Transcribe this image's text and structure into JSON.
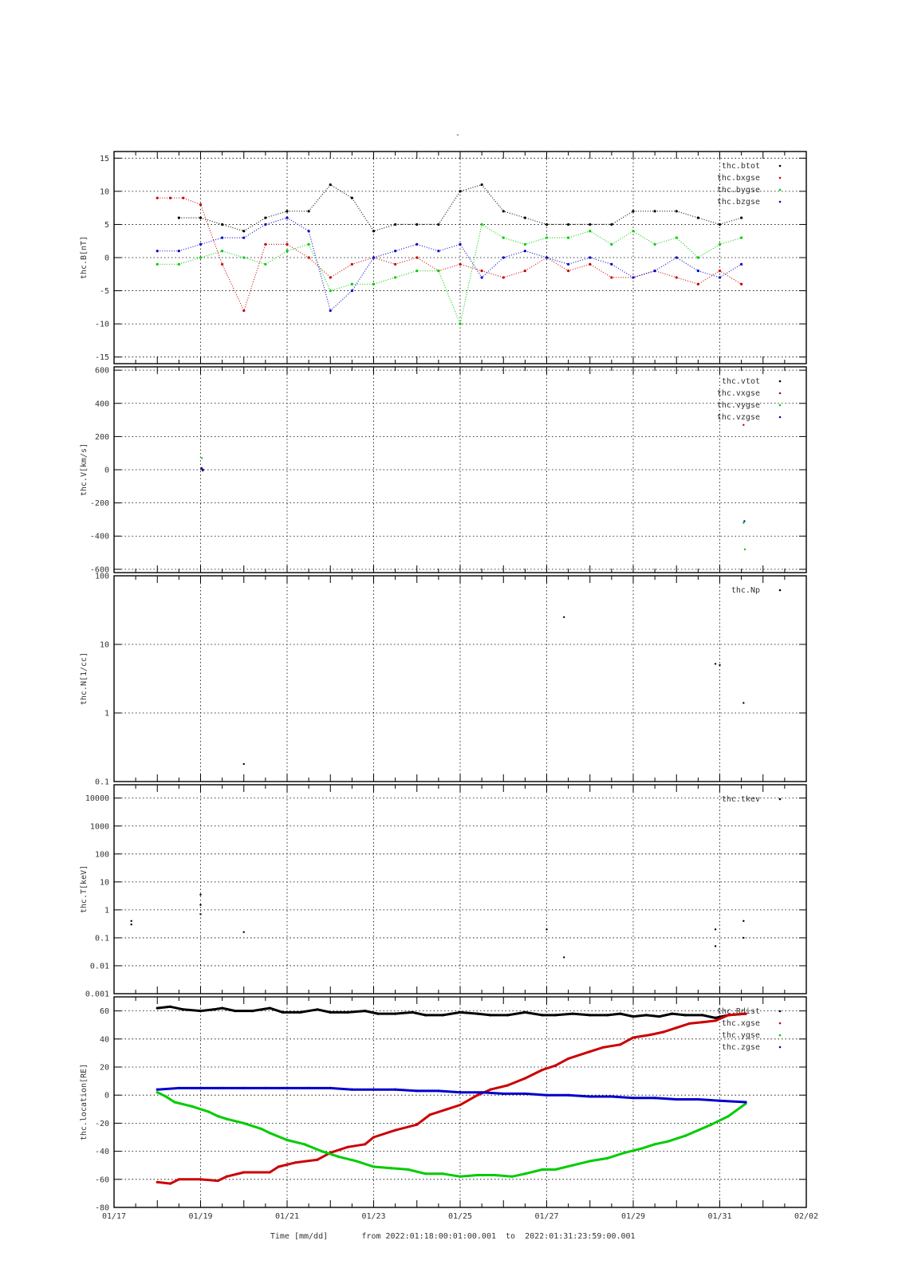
{
  "title": "-",
  "footer": {
    "xlabel": "Time [mm/dd]",
    "range_text": "from 2022:01:18:00:01:00.001  to  2022:01:31:23:59:00.001"
  },
  "colors": {
    "black": "#000000",
    "red": "#cc0000",
    "green": "#00cc00",
    "blue": "#0000cc"
  },
  "chart_data": [
    {
      "type": "scatter",
      "ylabel": "thc.B[nT]",
      "ylim": [
        -16,
        16
      ],
      "yticks": [
        -15,
        -10,
        -5,
        0,
        5,
        10,
        15
      ],
      "legend_position": "top-right",
      "series": [
        {
          "name": "thc.btot",
          "color": "#000000",
          "x": [
            18.5,
            19.0,
            19.5,
            20.0,
            20.5,
            21.0,
            21.5,
            22.0,
            22.5,
            23.0,
            23.5,
            24.0,
            24.5,
            25.0,
            25.5,
            26.0,
            26.5,
            27.0,
            27.5,
            28.0,
            28.5,
            29.0,
            29.5,
            30.0,
            30.5,
            31.0,
            31.5
          ],
          "values": [
            6,
            6,
            5,
            4,
            6,
            7,
            7,
            11,
            9,
            4,
            5,
            5,
            5,
            10,
            11,
            7,
            6,
            5,
            5,
            5,
            5,
            7,
            7,
            7,
            6,
            5,
            6
          ]
        },
        {
          "name": "thc.bxgse",
          "color": "#cc0000",
          "x": [
            18.0,
            18.3,
            18.6,
            19.0,
            19.5,
            20.0,
            20.5,
            21.0,
            21.5,
            22.0,
            22.5,
            23.0,
            23.5,
            24.0,
            24.5,
            25.0,
            25.5,
            26.0,
            26.5,
            27.0,
            27.5,
            28.0,
            28.5,
            29.0,
            29.5,
            30.0,
            30.5,
            31.0,
            31.5
          ],
          "values": [
            9,
            9,
            9,
            8,
            -1,
            -8,
            2,
            2,
            0,
            -3,
            -1,
            0,
            -1,
            0,
            -2,
            -1,
            -2,
            -3,
            -2,
            0,
            -2,
            -1,
            -3,
            -3,
            -2,
            -3,
            -4,
            -2,
            -4
          ]
        },
        {
          "name": "thc.bygse",
          "color": "#00cc00",
          "x": [
            18.0,
            18.5,
            19.0,
            19.5,
            20.0,
            20.5,
            21.0,
            21.5,
            22.0,
            22.5,
            23.0,
            23.5,
            24.0,
            24.5,
            25.0,
            25.5,
            26.0,
            26.5,
            27.0,
            27.5,
            28.0,
            28.5,
            29.0,
            29.5,
            30.0,
            30.5,
            31.0,
            31.5
          ],
          "values": [
            -1,
            -1,
            0,
            1,
            0,
            -1,
            1,
            2,
            -5,
            -4,
            -4,
            -3,
            -2,
            -2,
            -10,
            5,
            3,
            2,
            3,
            3,
            4,
            2,
            4,
            2,
            3,
            0,
            2,
            3
          ]
        },
        {
          "name": "thc.bzgse",
          "color": "#0000cc",
          "x": [
            18.0,
            18.5,
            19.0,
            19.5,
            20.0,
            20.5,
            21.0,
            21.5,
            22.0,
            22.5,
            23.0,
            23.5,
            24.0,
            24.5,
            25.0,
            25.5,
            26.0,
            26.5,
            27.0,
            27.5,
            28.0,
            28.5,
            29.0,
            29.5,
            30.0,
            30.5,
            31.0,
            31.5
          ],
          "values": [
            1,
            1,
            2,
            3,
            3,
            5,
            6,
            4,
            -8,
            -5,
            0,
            1,
            2,
            1,
            2,
            -3,
            0,
            1,
            0,
            -1,
            0,
            -1,
            -3,
            -2,
            0,
            -2,
            -3,
            -1
          ]
        }
      ]
    },
    {
      "type": "scatter",
      "ylabel": "thc.V[km/s]",
      "ylim": [
        -620,
        620
      ],
      "yticks": [
        -600,
        -400,
        -200,
        0,
        200,
        400,
        600
      ],
      "legend_position": "top-right",
      "series": [
        {
          "name": "thc.vtot",
          "color": "#000000",
          "x": [
            19.02,
            19.05
          ],
          "values": [
            5,
            -5
          ]
        },
        {
          "name": "thc.vxgse",
          "color": "#cc0000",
          "x": [
            31.55
          ],
          "values": [
            270
          ]
        },
        {
          "name": "thc.vygse",
          "color": "#00cc00",
          "x": [
            19.03,
            31.55,
            31.58
          ],
          "values": [
            70,
            -320,
            -480
          ]
        },
        {
          "name": "thc.vzgse",
          "color": "#0000cc",
          "x": [
            19.03,
            19.06,
            31.57
          ],
          "values": [
            10,
            0,
            -310
          ]
        }
      ]
    },
    {
      "type": "scatter",
      "ylabel": "thc.N[1/cc]",
      "yscale": "log",
      "ylim": [
        0.1,
        100
      ],
      "yticks": [
        0.1,
        1,
        10,
        100
      ],
      "legend_position": "top-right",
      "series": [
        {
          "name": "thc.Np",
          "color": "#000000",
          "x": [
            20.0,
            27.4,
            30.9,
            31.0,
            31.55
          ],
          "values": [
            0.18,
            25,
            5.2,
            5,
            1.4
          ]
        }
      ]
    },
    {
      "type": "scatter",
      "ylabel": "thc.T[keV]",
      "yscale": "log",
      "ylim": [
        0.001,
        30000
      ],
      "yticks": [
        0.001,
        0.01,
        0.1,
        1,
        10,
        100,
        1000,
        10000
      ],
      "ytick_labels": [
        "0.001",
        "0.01",
        "0.1",
        "1",
        "10",
        "100",
        "1000",
        "10000"
      ],
      "legend_position": "top-right",
      "series": [
        {
          "name": "thc.tkev",
          "color": "#000000",
          "x": [
            17.4,
            17.4,
            19.0,
            19.0,
            19.0,
            20.0,
            27.0,
            27.4,
            30.9,
            30.9,
            31.55,
            31.55
          ],
          "values": [
            0.4,
            0.3,
            3.5,
            1.5,
            0.7,
            0.16,
            0.2,
            0.02,
            0.2,
            0.05,
            0.4,
            0.1
          ]
        }
      ]
    },
    {
      "type": "line",
      "ylabel": "thc.location[RE]",
      "ylim": [
        -80,
        70
      ],
      "yticks": [
        -80,
        -60,
        -40,
        -20,
        0,
        20,
        40,
        60
      ],
      "xlim": [
        17,
        33
      ],
      "xticks": [
        17,
        19,
        21,
        23,
        25,
        27,
        29,
        31,
        33
      ],
      "xtick_labels": [
        "01/17",
        "01/19",
        "01/21",
        "01/23",
        "01/25",
        "01/27",
        "01/29",
        "01/31",
        "02/02"
      ],
      "legend_position": "top-right",
      "series": [
        {
          "name": "thc.Rdist",
          "color": "#000000",
          "x": [
            18.0,
            18.3,
            18.6,
            19.0,
            19.3,
            19.5,
            19.8,
            20.2,
            20.6,
            20.9,
            21.3,
            21.7,
            22.0,
            22.4,
            22.8,
            23.1,
            23.5,
            23.9,
            24.2,
            24.6,
            25.0,
            25.4,
            25.7,
            26.1,
            26.5,
            26.9,
            27.2,
            27.6,
            28.0,
            28.4,
            28.7,
            29.0,
            29.3,
            29.6,
            29.9,
            30.2,
            30.6,
            30.9,
            31.2,
            31.6
          ],
          "values": [
            62,
            63,
            61,
            60,
            61,
            62,
            60,
            60,
            62,
            59,
            59,
            61,
            59,
            59,
            60,
            58,
            58,
            59,
            57,
            57,
            59,
            58,
            57,
            57,
            59,
            57,
            57,
            58,
            57,
            57,
            58,
            56,
            57,
            56,
            58,
            57,
            57,
            55,
            57,
            58
          ]
        },
        {
          "name": "thc.xgse",
          "color": "#cc0000",
          "x": [
            18.0,
            18.3,
            18.5,
            19.0,
            19.4,
            19.6,
            20.0,
            20.6,
            20.8,
            21.2,
            21.7,
            22.0,
            22.4,
            22.8,
            23.0,
            23.5,
            24.0,
            24.3,
            24.7,
            25.0,
            25.4,
            25.7,
            26.1,
            26.5,
            26.9,
            27.2,
            27.5,
            28.0,
            28.3,
            28.7,
            29.0,
            29.4,
            29.7,
            30.0,
            30.3,
            30.6,
            30.9,
            31.2,
            31.6
          ],
          "values": [
            -62,
            -63,
            -60,
            -60,
            -61,
            -58,
            -55,
            -55,
            -51,
            -48,
            -46,
            -41,
            -37,
            -35,
            -30,
            -25,
            -21,
            -14,
            -10,
            -7,
            0,
            4,
            7,
            12,
            18,
            21,
            26,
            31,
            34,
            36,
            41,
            43,
            45,
            48,
            51,
            52,
            53,
            57,
            58
          ]
        },
        {
          "name": "thc.ygse",
          "color": "#00cc00",
          "x": [
            18.0,
            18.2,
            18.4,
            18.8,
            19.2,
            19.4,
            19.6,
            20.0,
            20.4,
            20.6,
            21.0,
            21.4,
            21.8,
            22.2,
            22.6,
            23.0,
            23.4,
            23.8,
            24.2,
            24.6,
            25.0,
            25.4,
            25.8,
            26.2,
            26.5,
            26.9,
            27.2,
            27.6,
            28.0,
            28.4,
            28.8,
            29.2,
            29.5,
            29.8,
            30.2,
            30.5,
            30.8,
            31.2,
            31.6
          ],
          "values": [
            2,
            -1,
            -5,
            -8,
            -12,
            -15,
            -17,
            -20,
            -24,
            -27,
            -32,
            -35,
            -40,
            -44,
            -47,
            -51,
            -52,
            -53,
            -56,
            -56,
            -58,
            -57,
            -57,
            -58,
            -56,
            -53,
            -53,
            -50,
            -47,
            -45,
            -41,
            -38,
            -35,
            -33,
            -29,
            -25,
            -21,
            -15,
            -6
          ]
        },
        {
          "name": "thc.zgse",
          "color": "#0000cc",
          "x": [
            18.0,
            18.5,
            19.0,
            19.5,
            20.0,
            20.5,
            21.0,
            21.5,
            22.0,
            22.5,
            23.0,
            23.5,
            24.0,
            24.5,
            25.0,
            25.5,
            26.0,
            26.5,
            27.0,
            27.5,
            28.0,
            28.5,
            29.0,
            29.5,
            30.0,
            30.5,
            31.0,
            31.6
          ],
          "values": [
            4,
            5,
            5,
            5,
            5,
            5,
            5,
            5,
            5,
            4,
            4,
            4,
            3,
            3,
            2,
            2,
            1,
            1,
            0,
            0,
            -1,
            -1,
            -2,
            -2,
            -3,
            -3,
            -4,
            -5
          ]
        }
      ]
    }
  ]
}
